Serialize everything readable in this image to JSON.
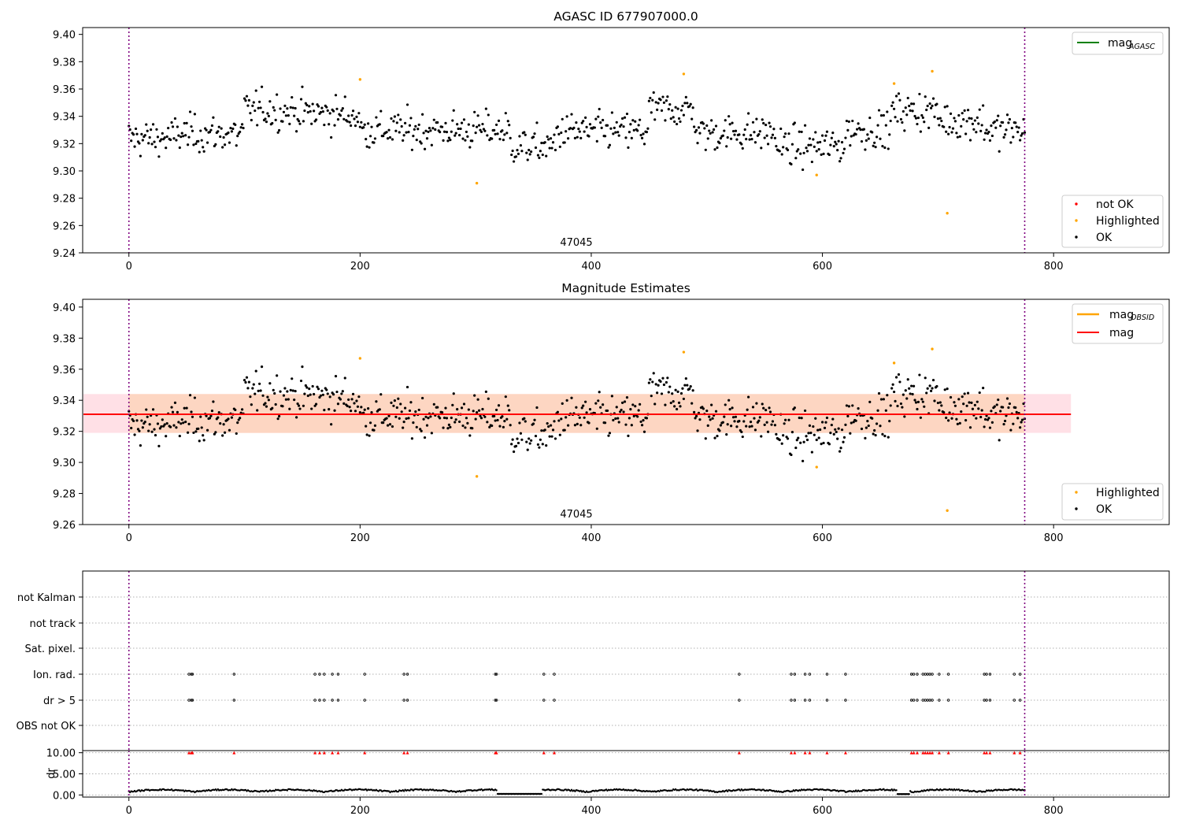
{
  "figure": {
    "chart_data": [
      {
        "type": "scatter",
        "title": "AGASC ID 677907000.0",
        "annotation": "47045",
        "xlim": [
          -40,
          900
        ],
        "ylim": [
          9.24,
          9.405
        ],
        "xticks": [
          0,
          200,
          400,
          600,
          800
        ],
        "yticks": [
          9.24,
          9.26,
          9.28,
          9.3,
          9.32,
          9.34,
          9.36,
          9.38,
          9.4
        ],
        "vlines": [
          0,
          775
        ],
        "legend_upper": [
          {
            "label": "mag",
            "sub": "AGASC",
            "color": "#008000"
          }
        ],
        "legend_lower": [
          {
            "label": "not OK",
            "color": "#ff0000"
          },
          {
            "label": "Highlighted",
            "color": "#ffa500"
          },
          {
            "label": "OK",
            "color": "#000000"
          }
        ],
        "series": [
          {
            "name": "Highlighted",
            "color": "#ffa500",
            "x": [
              200,
              301,
              480,
              595,
              662,
              695,
              708
            ],
            "y": [
              9.367,
              9.291,
              9.371,
              9.297,
              9.364,
              9.373,
              9.269
            ]
          }
        ]
      },
      {
        "type": "scatter",
        "title": "Magnitude Estimates",
        "annotation": "47045",
        "xlim": [
          -40,
          900
        ],
        "ylim": [
          9.26,
          9.405
        ],
        "xticks": [
          0,
          200,
          400,
          600,
          800
        ],
        "yticks": [
          9.26,
          9.28,
          9.3,
          9.32,
          9.34,
          9.36,
          9.38,
          9.4
        ],
        "vlines": [
          0,
          775
        ],
        "mag_line": 9.331,
        "mag_band_outer": [
          9.319,
          9.344
        ],
        "mag_band_inner": [
          9.319,
          9.344
        ],
        "legend_upper": [
          {
            "label": "mag",
            "sub": "OBSID",
            "color": "#ffa500"
          },
          {
            "label": "mag",
            "color": "#ff0000"
          }
        ],
        "legend_lower": [
          {
            "label": "Highlighted",
            "color": "#ffa500"
          },
          {
            "label": "OK",
            "color": "#000000"
          }
        ],
        "series": [
          {
            "name": "Highlighted",
            "color": "#ffa500",
            "x": [
              200,
              301,
              480,
              595,
              662,
              695,
              708
            ],
            "y": [
              9.367,
              9.291,
              9.371,
              9.297,
              9.364,
              9.373,
              9.269
            ]
          }
        ]
      },
      {
        "type": "scatter",
        "title": "",
        "ycategories": [
          "not Kalman",
          "not track",
          "Sat. pixel.",
          "Ion. rad.",
          "dr > 5",
          "OBS not OK"
        ],
        "flag_x": [
          52,
          54,
          55,
          91,
          161,
          165,
          169,
          176,
          181,
          204,
          238,
          241,
          317,
          318,
          359,
          368,
          528,
          573,
          576,
          585,
          589,
          604,
          620,
          677,
          679,
          682,
          687,
          689,
          691,
          693,
          695,
          701,
          709,
          740,
          742,
          745,
          766,
          771
        ],
        "vlines": [
          0,
          775
        ],
        "xticks": [
          0,
          200,
          400,
          600,
          800
        ]
      },
      {
        "type": "scatter",
        "title": "",
        "ylabel": "dr",
        "ylim": [
          -0.5,
          10.5
        ],
        "yticks": [
          0,
          5,
          10
        ],
        "xlim": [
          -40,
          900
        ],
        "xticks": [
          0,
          200,
          400,
          600,
          800
        ],
        "vlines": [
          0,
          775
        ],
        "flag_marker_value": 10,
        "flag_color": "#ff0000"
      }
    ]
  }
}
